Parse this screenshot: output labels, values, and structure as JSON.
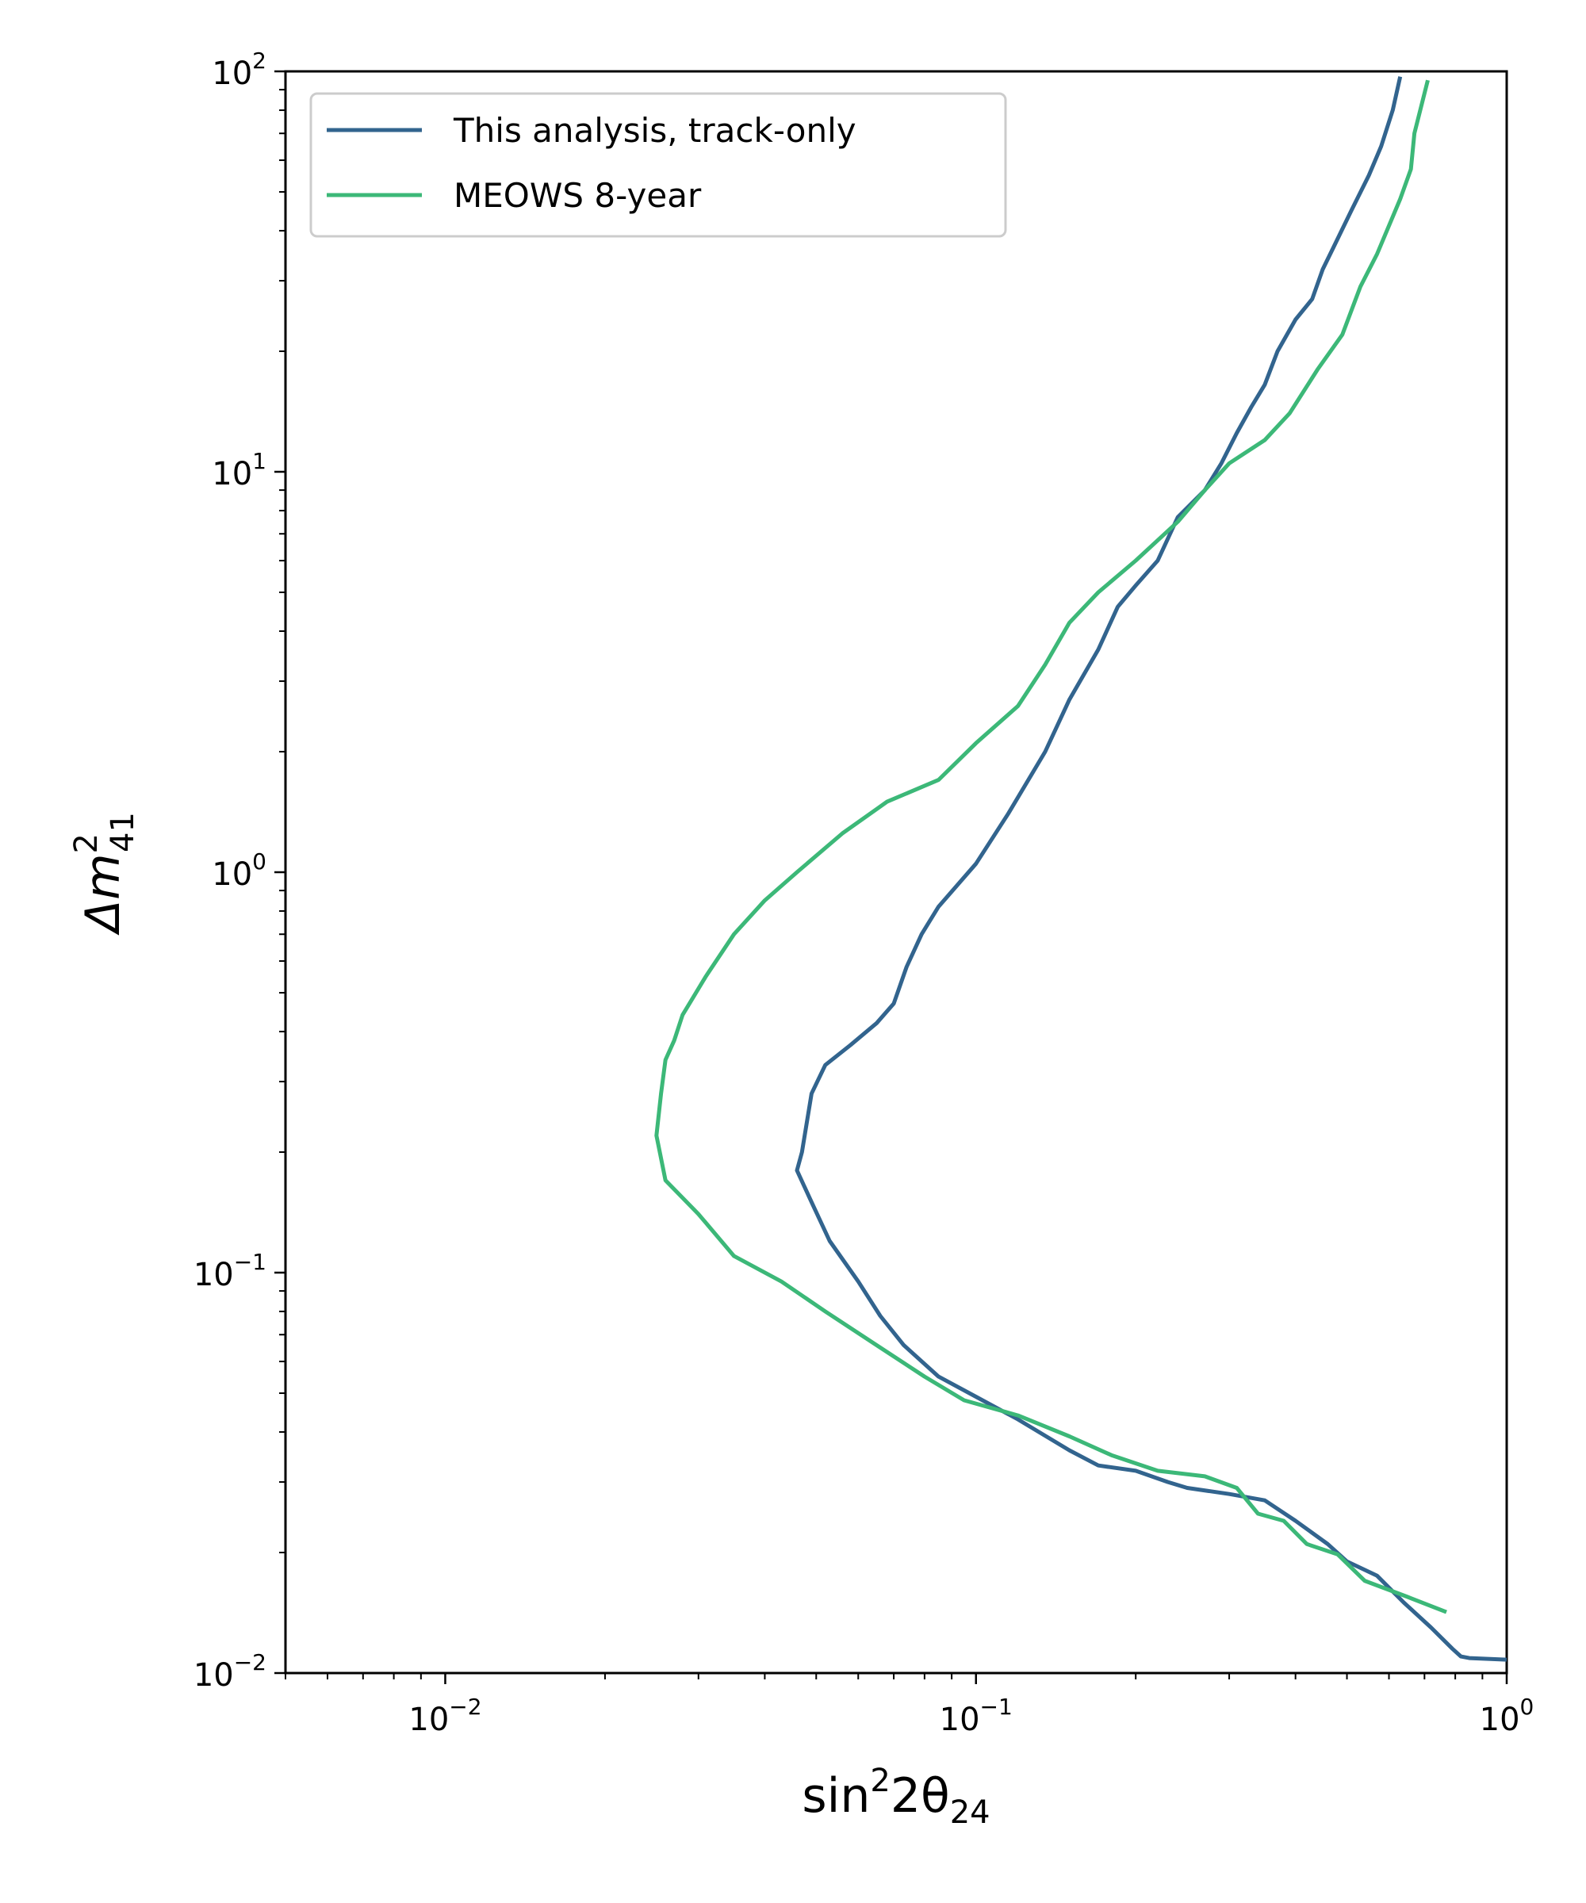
{
  "chart_data": {
    "type": "line",
    "title": "",
    "xlabel": {
      "base": "sin",
      "sup": "2",
      "mid": "2θ",
      "sub": "24"
    },
    "ylabel": {
      "base": "Δm",
      "sup": "2",
      "sub": "41"
    },
    "xscale": "log",
    "yscale": "log",
    "xlim": [
      0.005,
      1.0
    ],
    "ylim": [
      0.01,
      100
    ],
    "xticks": [
      {
        "value": 0.01,
        "base": "10",
        "exp": "−2"
      },
      {
        "value": 0.1,
        "base": "10",
        "exp": "−1"
      },
      {
        "value": 1.0,
        "base": "10",
        "exp": "0"
      }
    ],
    "yticks": [
      {
        "value": 0.01,
        "base": "10",
        "exp": "−2"
      },
      {
        "value": 0.1,
        "base": "10",
        "exp": "−1"
      },
      {
        "value": 1.0,
        "base": "10",
        "exp": "0"
      },
      {
        "value": 10,
        "base": "10",
        "exp": "1"
      },
      {
        "value": 100,
        "base": "10",
        "exp": "2"
      }
    ],
    "grid": false,
    "legend_position": "upper-left",
    "series": [
      {
        "name": "This analysis, track-only",
        "color": "#32648e",
        "points": [
          [
            0.63,
            97
          ],
          [
            0.61,
            80
          ],
          [
            0.58,
            65
          ],
          [
            0.55,
            55
          ],
          [
            0.51,
            45
          ],
          [
            0.47,
            36
          ],
          [
            0.45,
            32
          ],
          [
            0.43,
            27
          ],
          [
            0.4,
            24
          ],
          [
            0.37,
            20
          ],
          [
            0.35,
            16.5
          ],
          [
            0.33,
            14.5
          ],
          [
            0.31,
            12.5
          ],
          [
            0.29,
            10.5
          ],
          [
            0.27,
            9
          ],
          [
            0.24,
            7.7
          ],
          [
            0.22,
            6
          ],
          [
            0.2,
            5.2
          ],
          [
            0.185,
            4.6
          ],
          [
            0.17,
            3.6
          ],
          [
            0.15,
            2.7
          ],
          [
            0.135,
            2.0
          ],
          [
            0.115,
            1.4
          ],
          [
            0.1,
            1.05
          ],
          [
            0.085,
            0.82
          ],
          [
            0.079,
            0.7
          ],
          [
            0.074,
            0.58
          ],
          [
            0.07,
            0.47
          ],
          [
            0.065,
            0.42
          ],
          [
            0.058,
            0.37
          ],
          [
            0.052,
            0.33
          ],
          [
            0.049,
            0.28
          ],
          [
            0.047,
            0.2
          ],
          [
            0.046,
            0.18
          ],
          [
            0.049,
            0.15
          ],
          [
            0.053,
            0.12
          ],
          [
            0.06,
            0.095
          ],
          [
            0.066,
            0.078
          ],
          [
            0.073,
            0.066
          ],
          [
            0.085,
            0.055
          ],
          [
            0.1,
            0.049
          ],
          [
            0.12,
            0.043
          ],
          [
            0.15,
            0.036
          ],
          [
            0.17,
            0.033
          ],
          [
            0.2,
            0.032
          ],
          [
            0.23,
            0.03
          ],
          [
            0.25,
            0.029
          ],
          [
            0.3,
            0.028
          ],
          [
            0.35,
            0.027
          ],
          [
            0.4,
            0.024
          ],
          [
            0.46,
            0.021
          ],
          [
            0.5,
            0.019
          ],
          [
            0.57,
            0.0175
          ],
          [
            0.64,
            0.015
          ],
          [
            0.72,
            0.013
          ],
          [
            0.79,
            0.0115
          ],
          [
            0.82,
            0.011
          ],
          [
            0.85,
            0.0109
          ],
          [
            1.0,
            0.0108
          ]
        ]
      },
      {
        "name": "MEOWS 8-year",
        "color": "#3cb878",
        "points": [
          [
            0.71,
            95
          ],
          [
            0.67,
            70
          ],
          [
            0.66,
            57
          ],
          [
            0.63,
            48
          ],
          [
            0.57,
            35
          ],
          [
            0.53,
            29
          ],
          [
            0.49,
            22
          ],
          [
            0.44,
            18
          ],
          [
            0.39,
            14
          ],
          [
            0.35,
            12
          ],
          [
            0.3,
            10.5
          ],
          [
            0.27,
            9
          ],
          [
            0.24,
            7.5
          ],
          [
            0.2,
            6
          ],
          [
            0.17,
            5
          ],
          [
            0.15,
            4.2
          ],
          [
            0.135,
            3.3
          ],
          [
            0.12,
            2.6
          ],
          [
            0.1,
            2.1
          ],
          [
            0.085,
            1.7
          ],
          [
            0.068,
            1.5
          ],
          [
            0.056,
            1.25
          ],
          [
            0.046,
            1.0
          ],
          [
            0.04,
            0.85
          ],
          [
            0.035,
            0.7
          ],
          [
            0.031,
            0.55
          ],
          [
            0.028,
            0.44
          ],
          [
            0.027,
            0.38
          ],
          [
            0.026,
            0.34
          ],
          [
            0.0255,
            0.28
          ],
          [
            0.025,
            0.22
          ],
          [
            0.026,
            0.17
          ],
          [
            0.03,
            0.14
          ],
          [
            0.035,
            0.11
          ],
          [
            0.043,
            0.095
          ],
          [
            0.052,
            0.08
          ],
          [
            0.066,
            0.065
          ],
          [
            0.08,
            0.055
          ],
          [
            0.095,
            0.048
          ],
          [
            0.12,
            0.044
          ],
          [
            0.15,
            0.039
          ],
          [
            0.18,
            0.035
          ],
          [
            0.22,
            0.032
          ],
          [
            0.27,
            0.031
          ],
          [
            0.31,
            0.029
          ],
          [
            0.34,
            0.025
          ],
          [
            0.38,
            0.024
          ],
          [
            0.42,
            0.021
          ],
          [
            0.48,
            0.0198
          ],
          [
            0.54,
            0.017
          ],
          [
            0.65,
            0.0155
          ],
          [
            0.77,
            0.0142
          ]
        ]
      }
    ]
  }
}
